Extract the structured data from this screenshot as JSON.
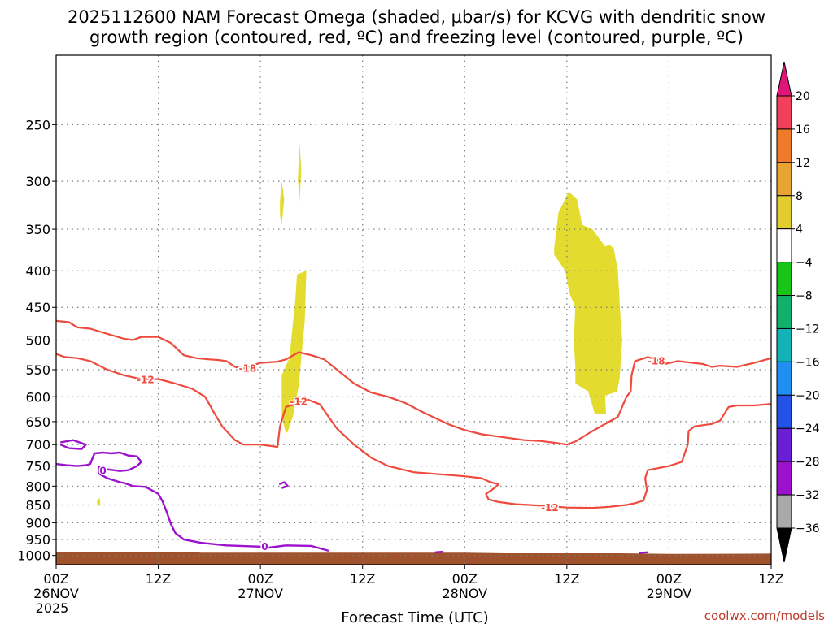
{
  "header": {
    "title_line1": "2025112600 NAM Forecast Omega (shaded, µbar/s) for KCVG with dendritic snow",
    "title_line2": "growth region (contoured, red, ºC) and freezing level (contoured, purple, ºC)"
  },
  "footer": {
    "xlabel": "Forecast Time (UTC)",
    "credit": "coolwx.com/models"
  },
  "colors": {
    "omega_fill": "#e3dc2e",
    "dgz_contour": "#ef4a3e",
    "freezing_contour": "#9b11cc",
    "ground": "#a0522d",
    "grid": "#7a7a7a"
  },
  "chart_data": {
    "type": "time-height cross section",
    "x_axis": {
      "label": "Forecast Time (UTC)",
      "range_hours": [
        0,
        84
      ],
      "ticks": [
        {
          "hour": 0,
          "line1": "00Z",
          "line2": "26NOV",
          "line3": "2025"
        },
        {
          "hour": 12,
          "line1": "12Z",
          "line2": "",
          "line3": ""
        },
        {
          "hour": 24,
          "line1": "00Z",
          "line2": "27NOV",
          "line3": ""
        },
        {
          "hour": 36,
          "line1": "12Z",
          "line2": "",
          "line3": ""
        },
        {
          "hour": 48,
          "line1": "00Z",
          "line2": "28NOV",
          "line3": ""
        },
        {
          "hour": 60,
          "line1": "12Z",
          "line2": "",
          "line3": ""
        },
        {
          "hour": 72,
          "line1": "00Z",
          "line2": "29NOV",
          "line3": ""
        },
        {
          "hour": 84,
          "line1": "12Z",
          "line2": "",
          "line3": ""
        }
      ]
    },
    "y_axis": {
      "label": "",
      "scale": "log pressure (hPa)",
      "range": [
        1030,
        200
      ],
      "ticks": [
        250,
        300,
        350,
        400,
        450,
        500,
        550,
        600,
        650,
        700,
        750,
        800,
        850,
        900,
        950,
        1000
      ]
    },
    "grid": true,
    "colorbar": {
      "units": "µbar/s",
      "entries": [
        {
          "value": "20",
          "color": "#f2405a"
        },
        {
          "value": "16",
          "color": "#f07a2a"
        },
        {
          "value": "12",
          "color": "#e7a433"
        },
        {
          "value": "8",
          "color": "#e3cc2e"
        },
        {
          "value": "4",
          "color": "#ffffff"
        },
        {
          "value": "−4",
          "color": "#19c419"
        },
        {
          "value": "−8",
          "color": "#10b26b"
        },
        {
          "value": "−12",
          "color": "#13b2b7"
        },
        {
          "value": "−16",
          "color": "#1f8ff2"
        },
        {
          "value": "−20",
          "color": "#2352e8"
        },
        {
          "value": "−24",
          "color": "#6a1fd6"
        },
        {
          "value": "−28",
          "color": "#9b11cc"
        },
        {
          "value": "−32",
          "color": "#a9a9a9"
        },
        {
          "value": "−36",
          "color": "#000000"
        }
      ],
      "top_cap_color": "#e0157a",
      "bottom_cap_color": "#000000"
    },
    "omega_regions": [
      {
        "name": "omega-region-a",
        "level": "4-8",
        "points": [
          [
            26.3,
            320
          ],
          [
            26.5,
            300
          ],
          [
            26.8,
            318
          ],
          [
            26.5,
            345
          ],
          [
            26.3,
            335
          ]
        ]
      },
      {
        "name": "omega-region-b",
        "level": "4-8",
        "points": [
          [
            28.4,
            298
          ],
          [
            28.6,
            265
          ],
          [
            28.8,
            290
          ],
          [
            28.6,
            320
          ]
        ]
      },
      {
        "name": "omega-region-c",
        "level": "4-8",
        "points": [
          [
            27.0,
            675
          ],
          [
            26.5,
            640
          ],
          [
            26.5,
            560
          ],
          [
            27.4,
            530
          ],
          [
            28.1,
            440
          ],
          [
            28.3,
            405
          ],
          [
            29.4,
            400
          ],
          [
            29.2,
            470
          ],
          [
            28.5,
            580
          ],
          [
            27.8,
            640
          ],
          [
            27.2,
            672
          ]
        ]
      },
      {
        "name": "omega-region-d",
        "level": "4-8",
        "points": [
          [
            58.5,
            372
          ],
          [
            59.0,
            332
          ],
          [
            60.2,
            310
          ],
          [
            61.2,
            318
          ],
          [
            61.8,
            345
          ],
          [
            63.0,
            350
          ],
          [
            64.5,
            370
          ],
          [
            65.0,
            368
          ],
          [
            65.5,
            372
          ],
          [
            66.0,
            400
          ],
          [
            66.3,
            465
          ],
          [
            66.5,
            500
          ],
          [
            66.2,
            565
          ],
          [
            65.9,
            590
          ],
          [
            64.5,
            598
          ],
          [
            64.6,
            635
          ],
          [
            63.3,
            635
          ],
          [
            62.5,
            590
          ],
          [
            61.0,
            575
          ],
          [
            61.0,
            545
          ],
          [
            60.8,
            500
          ],
          [
            61.0,
            450
          ],
          [
            60.3,
            430
          ],
          [
            59.8,
            400
          ],
          [
            58.5,
            380
          ]
        ]
      },
      {
        "name": "omega-region-e",
        "level": "4-8",
        "points": [
          [
            4.8,
            840
          ],
          [
            5.1,
            830
          ],
          [
            5.2,
            848
          ],
          [
            4.9,
            855
          ]
        ]
      }
    ],
    "dgz_contours": [
      {
        "name": "-18",
        "points": [
          [
            0,
            470
          ],
          [
            1.5,
            472
          ],
          [
            2.5,
            480
          ],
          [
            4,
            482
          ],
          [
            6,
            490
          ],
          [
            8,
            498
          ],
          [
            9,
            500
          ],
          [
            10,
            495
          ],
          [
            12,
            495
          ],
          [
            13.5,
            505
          ],
          [
            15,
            525
          ],
          [
            16.5,
            530
          ],
          [
            18,
            532
          ],
          [
            19,
            533
          ],
          [
            20,
            535
          ],
          [
            21,
            545
          ],
          [
            22,
            548
          ],
          [
            24,
            538
          ],
          [
            26,
            536
          ],
          [
            27,
            532
          ],
          [
            28.5,
            520
          ],
          [
            30,
            525
          ],
          [
            31.5,
            532
          ],
          [
            33,
            550
          ],
          [
            35,
            575
          ],
          [
            37,
            592
          ],
          [
            39,
            600
          ],
          [
            41,
            612
          ],
          [
            43,
            630
          ],
          [
            46,
            655
          ],
          [
            48,
            668
          ],
          [
            50,
            677
          ],
          [
            52,
            682
          ],
          [
            55,
            690
          ],
          [
            57,
            692
          ],
          [
            59,
            697
          ],
          [
            60,
            700
          ],
          [
            61,
            693
          ],
          [
            63,
            670
          ],
          [
            66,
            640
          ],
          [
            67,
            600
          ],
          [
            67.5,
            590
          ],
          [
            67.6,
            560
          ],
          [
            68,
            535
          ],
          [
            69.5,
            528
          ],
          [
            70.5,
            532
          ],
          [
            71.5,
            540
          ],
          [
            73,
            535
          ],
          [
            76,
            540
          ],
          [
            77,
            545
          ],
          [
            78,
            543
          ],
          [
            80,
            545
          ],
          [
            82,
            538
          ],
          [
            84,
            530
          ]
        ],
        "labels": [
          [
            22.5,
            548
          ],
          [
            70.5,
            535
          ]
        ]
      },
      {
        "name": "-12",
        "points": [
          [
            0,
            523
          ],
          [
            1,
            528
          ],
          [
            2.5,
            530
          ],
          [
            4,
            535
          ],
          [
            6,
            550
          ],
          [
            8,
            560
          ],
          [
            10,
            567
          ],
          [
            12,
            567
          ],
          [
            14,
            575
          ],
          [
            16,
            585
          ],
          [
            17.5,
            600
          ],
          [
            18.5,
            630
          ],
          [
            19.5,
            660
          ],
          [
            21,
            690
          ],
          [
            22,
            700
          ],
          [
            24,
            700
          ],
          [
            26,
            705
          ],
          [
            26.3,
            660
          ],
          [
            27,
            620
          ],
          [
            28,
            615
          ],
          [
            29.5,
            605
          ],
          [
            31,
            615
          ],
          [
            32,
            640
          ],
          [
            33,
            665
          ],
          [
            35,
            700
          ],
          [
            37,
            730
          ],
          [
            39,
            750
          ],
          [
            42,
            765
          ],
          [
            45,
            770
          ],
          [
            48,
            775
          ],
          [
            50,
            780
          ],
          [
            51,
            790
          ],
          [
            52,
            795
          ],
          [
            51.5,
            805
          ],
          [
            50.5,
            820
          ],
          [
            50.8,
            835
          ],
          [
            52,
            842
          ],
          [
            54,
            848
          ],
          [
            57,
            852
          ],
          [
            60,
            857
          ],
          [
            63,
            858
          ],
          [
            65,
            855
          ],
          [
            67,
            850
          ],
          [
            68,
            845
          ],
          [
            69,
            838
          ],
          [
            69.4,
            810
          ],
          [
            69.2,
            780
          ],
          [
            69.5,
            760
          ],
          [
            72,
            750
          ],
          [
            73.5,
            740
          ],
          [
            74.2,
            700
          ],
          [
            74.3,
            670
          ],
          [
            75,
            660
          ],
          [
            77,
            655
          ],
          [
            78,
            648
          ],
          [
            79,
            620
          ],
          [
            80,
            617
          ],
          [
            82,
            617
          ],
          [
            84,
            614
          ]
        ],
        "labels": [
          [
            10.5,
            568
          ],
          [
            28.5,
            610
          ],
          [
            58,
            858
          ]
        ]
      }
    ],
    "freezing_contours": [
      {
        "name": "0",
        "points": [
          [
            0,
            745
          ],
          [
            1.2,
            748
          ],
          [
            2.5,
            750
          ],
          [
            3.5,
            748
          ],
          [
            4,
            745
          ],
          [
            4.5,
            720
          ],
          [
            5.5,
            718
          ],
          [
            6.5,
            720
          ],
          [
            7.5,
            718
          ],
          [
            8.5,
            725
          ],
          [
            9.5,
            727
          ],
          [
            10,
            740
          ],
          [
            9.5,
            750
          ],
          [
            8.5,
            760
          ],
          [
            7.5,
            762
          ],
          [
            6,
            758
          ],
          [
            5,
            752
          ],
          [
            5,
            768
          ],
          [
            6,
            780
          ],
          [
            7.5,
            790
          ],
          [
            8,
            792
          ],
          [
            9,
            800
          ],
          [
            10.5,
            802
          ],
          [
            11,
            808
          ],
          [
            12,
            820
          ],
          [
            12.5,
            840
          ],
          [
            13,
            870
          ],
          [
            13.5,
            905
          ],
          [
            14,
            930
          ],
          [
            15,
            950
          ],
          [
            17,
            960
          ],
          [
            20,
            968
          ],
          [
            24,
            972
          ],
          [
            25,
            975
          ],
          [
            27,
            968
          ],
          [
            30,
            970
          ],
          [
            32,
            985
          ]
        ],
        "labels": [
          [
            24.5,
            973
          ],
          [
            5.5,
            762
          ]
        ]
      },
      {
        "name": "0b",
        "points": [
          [
            0.5,
            695
          ],
          [
            2,
            690
          ],
          [
            3.5,
            700
          ],
          [
            3,
            710
          ],
          [
            1.5,
            708
          ],
          [
            0.5,
            700
          ]
        ],
        "labels": []
      },
      {
        "name": "0c",
        "points": [
          [
            26.2,
            795
          ],
          [
            26.8,
            790
          ],
          [
            27.2,
            800
          ],
          [
            26.5,
            805
          ]
        ],
        "labels": []
      },
      {
        "name": "0d",
        "points": [
          [
            44.5,
            990
          ],
          [
            45.5,
            988
          ]
        ],
        "labels": []
      },
      {
        "name": "0e",
        "points": [
          [
            68.5,
            992
          ],
          [
            69.5,
            990
          ]
        ],
        "labels": []
      }
    ],
    "ground_surface_hpa": [
      [
        0,
        988
      ],
      [
        16,
        988
      ],
      [
        17,
        991
      ],
      [
        48,
        991
      ],
      [
        53,
        993
      ],
      [
        66,
        993
      ],
      [
        72,
        995
      ],
      [
        84,
        994
      ]
    ]
  }
}
